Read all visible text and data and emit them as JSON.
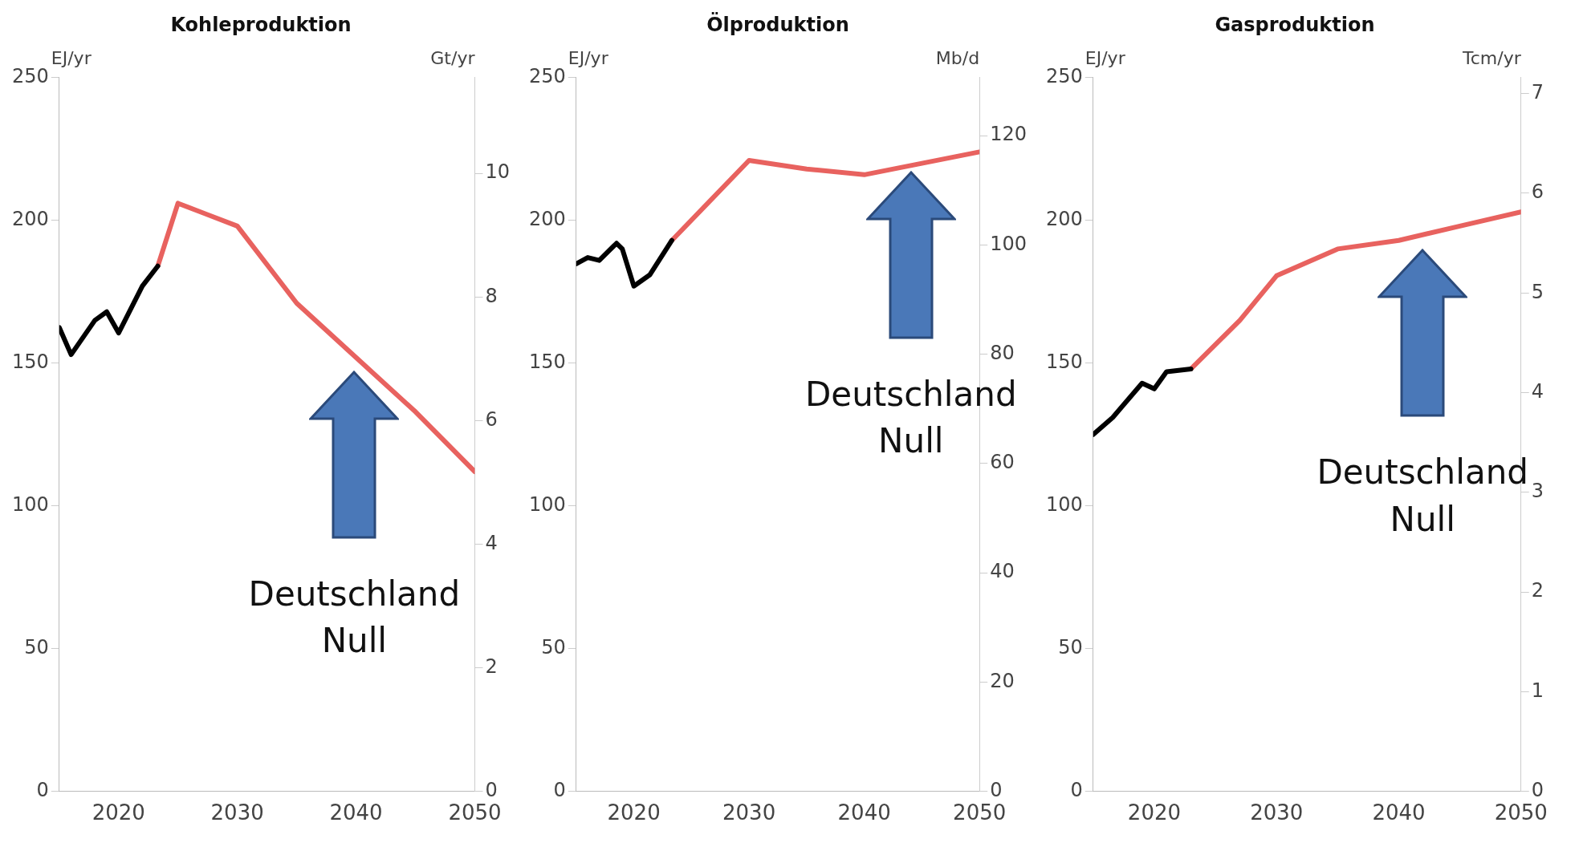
{
  "chart_data": [
    {
      "type": "line",
      "title": "Kohleproduktion",
      "ylabel": "EJ/yr",
      "y2label": "Gt/yr",
      "xlim": [
        2015,
        2050
      ],
      "xticks": [
        2020,
        2030,
        2040,
        2050
      ],
      "ylim": [
        0,
        250
      ],
      "yticks": [
        0,
        50,
        100,
        150,
        200,
        250
      ],
      "y2lim": [
        0,
        11.55
      ],
      "y2ticks": [
        0,
        2,
        4,
        6,
        8,
        10
      ],
      "grid": false,
      "legend": false,
      "marker": "none",
      "line_style": "solid",
      "series": [
        {
          "color": "#000000",
          "x": [
            2015,
            2016,
            2018,
            2019,
            2020,
            2022,
            2023.3
          ],
          "values": [
            162.5,
            153,
            165,
            168,
            160.6,
            177,
            184
          ]
        },
        {
          "color": "#e8625f",
          "x": [
            2023.3,
            2025,
            2030,
            2035,
            2040,
            2045,
            2050
          ],
          "values": [
            184,
            206,
            198,
            171,
            152,
            133,
            112
          ]
        }
      ],
      "annotations": [
        "Deutschland Null"
      ]
    },
    {
      "type": "line",
      "title": "Ölproduktion",
      "ylabel": "EJ/yr",
      "y2label": "Mb/d",
      "xlim": [
        2015,
        2050
      ],
      "xticks": [
        2020,
        2030,
        2040,
        2050
      ],
      "ylim": [
        0,
        250
      ],
      "yticks": [
        0,
        50,
        100,
        150,
        200,
        250
      ],
      "y2lim": [
        0,
        130.6
      ],
      "y2ticks": [
        0,
        20,
        40,
        60,
        80,
        100,
        120
      ],
      "grid": false,
      "legend": false,
      "marker": "none",
      "line_style": "solid",
      "series": [
        {
          "color": "#000000",
          "x": [
            2015,
            2016,
            2017,
            2018.5,
            2019,
            2020,
            2021.4,
            2023.3
          ],
          "values": [
            184.8,
            187,
            186,
            192,
            190,
            177,
            181,
            193
          ]
        },
        {
          "color": "#e8625f",
          "x": [
            2023.3,
            2030,
            2035,
            2040,
            2045,
            2050
          ],
          "values": [
            193,
            221,
            218,
            216,
            220,
            224
          ]
        }
      ],
      "annotations": [
        "Deutschland Null"
      ]
    },
    {
      "type": "line",
      "title": "Gasproduktion",
      "ylabel": "EJ/yr",
      "y2label": "Tcm/yr",
      "xlim": [
        2015,
        2050
      ],
      "xticks": [
        2020,
        2030,
        2040,
        2050
      ],
      "ylim": [
        0,
        250
      ],
      "yticks": [
        0,
        50,
        100,
        150,
        200,
        250
      ],
      "y2lim": [
        0,
        7.16
      ],
      "y2ticks": [
        0,
        1,
        2,
        3,
        4,
        5,
        6,
        7
      ],
      "grid": false,
      "legend": false,
      "marker": "none",
      "line_style": "solid",
      "series": [
        {
          "color": "#000000",
          "x": [
            2015,
            2016.6,
            2019,
            2020,
            2021,
            2023
          ],
          "values": [
            125,
            131,
            143,
            141,
            147,
            148
          ]
        },
        {
          "color": "#e8625f",
          "x": [
            2023,
            2027,
            2030,
            2035,
            2040,
            2045,
            2050
          ],
          "values": [
            148,
            165,
            180.6,
            190,
            193,
            198,
            203
          ]
        }
      ],
      "annotations": [
        "Deutschland Null"
      ]
    }
  ]
}
